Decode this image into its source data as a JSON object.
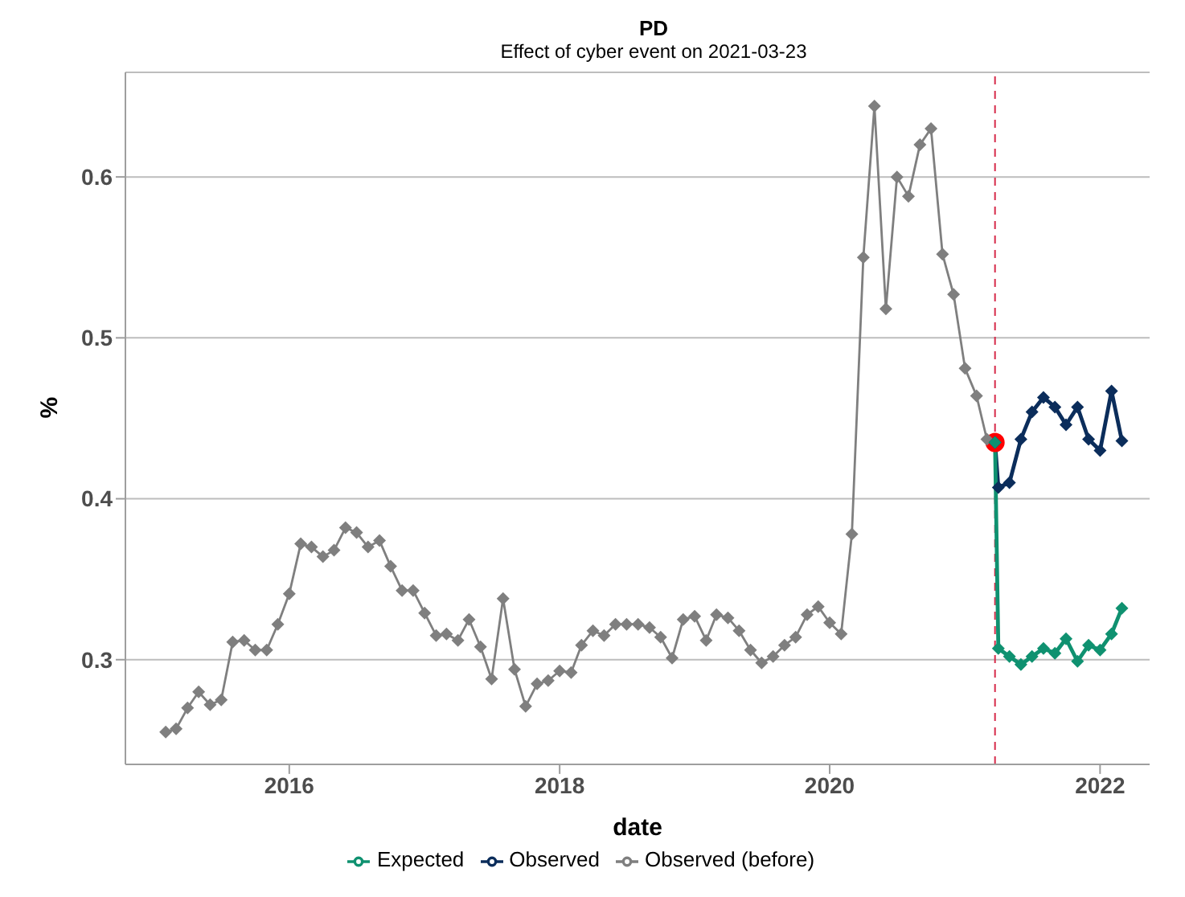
{
  "chart_data": {
    "type": "line",
    "title": "PD",
    "subtitle": "Effect of cyber event on 2021-03-23",
    "xlabel": "date",
    "ylabel": "%",
    "xlim": [
      "2014-10-15",
      "2022-05-15"
    ],
    "xticks": [
      "2016",
      "2018",
      "2020",
      "2022"
    ],
    "ylim": [
      0.235,
      0.665
    ],
    "yticks": [
      0.3,
      0.4,
      0.5,
      0.6
    ],
    "grid": "y",
    "legend": "bottom",
    "marker": "diamond",
    "line_style": "solid",
    "ref_lines": [
      {
        "axis": "x",
        "value": "2021-03-23",
        "color": "#d62b4a",
        "line_style": "dashed"
      }
    ],
    "series": [
      {
        "name": "Observed (before)",
        "color": "#7f7f7f",
        "x": [
          "2015-02",
          "2015-03",
          "2015-04",
          "2015-05",
          "2015-06",
          "2015-07",
          "2015-08",
          "2015-09",
          "2015-10",
          "2015-11",
          "2015-12",
          "2016-01",
          "2016-02",
          "2016-03",
          "2016-04",
          "2016-05",
          "2016-06",
          "2016-07",
          "2016-08",
          "2016-09",
          "2016-10",
          "2016-11",
          "2016-12",
          "2017-01",
          "2017-02",
          "2017-03",
          "2017-04",
          "2017-05",
          "2017-06",
          "2017-07",
          "2017-08",
          "2017-09",
          "2017-10",
          "2017-11",
          "2017-12",
          "2018-01",
          "2018-02",
          "2018-03",
          "2018-04",
          "2018-05",
          "2018-06",
          "2018-07",
          "2018-08",
          "2018-09",
          "2018-10",
          "2018-11",
          "2018-12",
          "2019-01",
          "2019-02",
          "2019-03",
          "2019-04",
          "2019-05",
          "2019-06",
          "2019-07",
          "2019-08",
          "2019-09",
          "2019-10",
          "2019-11",
          "2019-12",
          "2020-01",
          "2020-02",
          "2020-03",
          "2020-04",
          "2020-05",
          "2020-06",
          "2020-07",
          "2020-08",
          "2020-09",
          "2020-10",
          "2020-11",
          "2020-12",
          "2021-01",
          "2021-02",
          "2021-03"
        ],
        "values": [
          0.255,
          0.257,
          0.27,
          0.28,
          0.272,
          0.275,
          0.311,
          0.312,
          0.306,
          0.306,
          0.322,
          0.341,
          0.372,
          0.37,
          0.364,
          0.368,
          0.382,
          0.379,
          0.37,
          0.374,
          0.358,
          0.343,
          0.343,
          0.329,
          0.315,
          0.316,
          0.312,
          0.325,
          0.308,
          0.288,
          0.338,
          0.294,
          0.271,
          0.285,
          0.287,
          0.293,
          0.292,
          0.309,
          0.318,
          0.315,
          0.322,
          0.322,
          0.322,
          0.32,
          0.314,
          0.301,
          0.325,
          0.327,
          0.312,
          0.328,
          0.326,
          0.318,
          0.306,
          0.298,
          0.302,
          0.309,
          0.314,
          0.328,
          0.333,
          0.323,
          0.316,
          0.378,
          0.55,
          0.644,
          0.518,
          0.6,
          0.588,
          0.62,
          0.63,
          0.552,
          0.527,
          0.481,
          0.464,
          0.437
        ]
      },
      {
        "name": "Observed",
        "color": "#0b2d5b",
        "x": [
          "2021-03-23",
          "2021-04",
          "2021-05",
          "2021-06",
          "2021-07",
          "2021-08",
          "2021-09",
          "2021-10",
          "2021-11",
          "2021-12",
          "2022-01",
          "2022-02",
          "2022-03"
        ],
        "values": [
          0.435,
          0.407,
          0.41,
          0.437,
          0.454,
          0.463,
          0.457,
          0.446,
          0.457,
          0.437,
          0.43,
          0.467,
          0.436
        ]
      },
      {
        "name": "Expected",
        "color": "#0f9170",
        "x": [
          "2021-03-23",
          "2021-04",
          "2021-05",
          "2021-06",
          "2021-07",
          "2021-08",
          "2021-09",
          "2021-10",
          "2021-11",
          "2021-12",
          "2022-01",
          "2022-02",
          "2022-03"
        ],
        "values": [
          0.435,
          0.307,
          0.302,
          0.297,
          0.302,
          0.307,
          0.304,
          0.313,
          0.299,
          0.309,
          0.306,
          0.316,
          0.332
        ]
      },
      {
        "type": "scatter",
        "color": "#ff0000",
        "marker": "circle",
        "x": [
          "2021-03-23"
        ],
        "values": [
          0.435
        ]
      }
    ]
  }
}
